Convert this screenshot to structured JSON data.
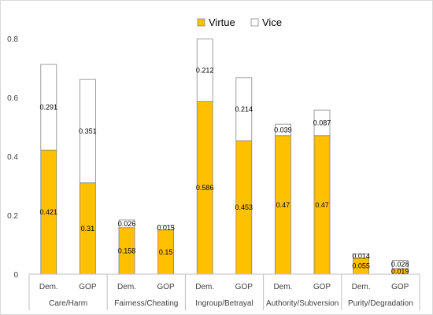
{
  "chart_data": {
    "type": "bar",
    "stacked": true,
    "groups": [
      "Care/Harm",
      "Fairness/Cheating",
      "Ingroup/Betrayal",
      "Authority/Subversion",
      "Purity/Degradation"
    ],
    "categories": [
      "Dem.",
      "GOP",
      "Dem.",
      "GOP",
      "Dem.",
      "GOP",
      "Dem.",
      "GOP",
      "Dem.",
      "GOP"
    ],
    "series": [
      {
        "name": "Virtue",
        "color": "#ffc000",
        "values": [
          0.421,
          0.31,
          0.158,
          0.15,
          0.586,
          0.453,
          0.47,
          0.47,
          0.055,
          0.019
        ],
        "labels": [
          "0.421",
          "0.31",
          "0.158",
          "0.15",
          "0.586",
          "0.453",
          "0.47",
          "0.47",
          "0.055",
          "0.019"
        ]
      },
      {
        "name": "Vice",
        "color": "#ffffff",
        "values": [
          0.291,
          0.351,
          0.026,
          0.015,
          0.212,
          0.214,
          0.039,
          0.087,
          0.014,
          0.028
        ],
        "labels": [
          "0.291",
          "0.351",
          "0.026",
          "0.015",
          "0.212",
          "0.214",
          "0.039",
          "0.087",
          "0.014",
          "0.028"
        ]
      }
    ],
    "ylim": [
      0,
      0.8
    ],
    "yticks": [
      0,
      0.2,
      0.4,
      0.6,
      0.8
    ],
    "ytick_labels": [
      "0",
      "0.2",
      "0.4",
      "0.6",
      "0.8"
    ],
    "grid": false,
    "legend_position": "top"
  }
}
